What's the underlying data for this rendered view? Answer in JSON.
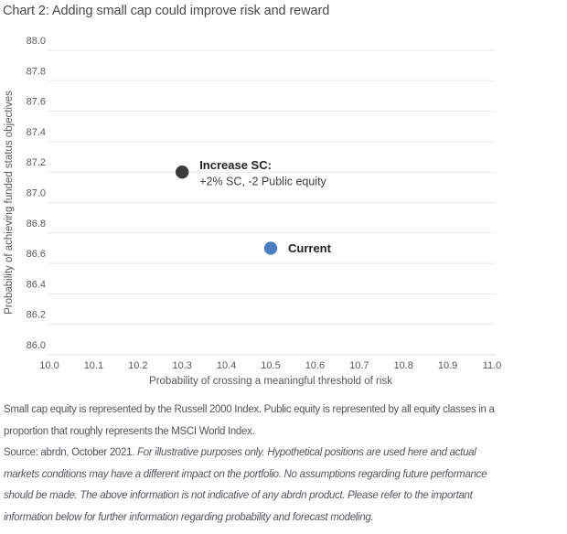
{
  "title": "Chart 2: Adding small cap could improve risk and reward",
  "chart_data": {
    "type": "scatter",
    "xlabel": "Probability of crossing a meaningful threshold of risk",
    "ylabel": "Probability of achieving funded status objectives",
    "xlim": [
      10.0,
      11.0
    ],
    "ylim": [
      86.0,
      88.0
    ],
    "x_ticks": [
      10.0,
      10.1,
      10.2,
      10.3,
      10.4,
      10.5,
      10.6,
      10.7,
      10.8,
      10.9,
      11.0
    ],
    "y_ticks": [
      86.0,
      86.2,
      86.4,
      86.6,
      86.8,
      87.0,
      87.2,
      87.4,
      87.6,
      87.8,
      88.0
    ],
    "grid": "horizontal-only",
    "legend": "none",
    "colors": {
      "grid": "#eaeaea",
      "axis_line": "#dcdcdc",
      "tick": "#595959",
      "axis_title": "#595959",
      "label_bold": "#232323",
      "label_regular": "#3f3f3f"
    },
    "series": [
      {
        "name": "Increase SC",
        "x": 10.3,
        "y": 87.2,
        "color": "#3b3b3b",
        "label_lines": [
          "Increase SC:",
          "+2% SC, -2 Public equity"
        ]
      },
      {
        "name": "Current",
        "x": 10.5,
        "y": 86.7,
        "color": "#4a7ec0",
        "label_lines": [
          "Current"
        ]
      }
    ]
  },
  "footnotes": {
    "lines": [
      {
        "segments": [
          {
            "text": "Small cap equity is represented by the Russell 2000 Index. Public equity is represented by all equity classes in a",
            "italic": false
          }
        ]
      },
      {
        "segments": [
          {
            "text": "proportion that roughly represents the MSCI World Index.",
            "italic": false
          }
        ]
      },
      {
        "segments": [
          {
            "text": "Source: abrdn, October 2021. ",
            "italic": false
          },
          {
            "text": "For illustrative purposes only. Hypothetical positions are used here and actual",
            "italic": true
          }
        ]
      },
      {
        "segments": [
          {
            "text": "markets conditions may have a different impact on the portfolio. No assumptions regarding future performance",
            "italic": true
          }
        ]
      },
      {
        "segments": [
          {
            "text": "should be made. The above information is not indicative of any abrdn product. Please refer to the important",
            "italic": true
          }
        ]
      },
      {
        "segments": [
          {
            "text": "information below for further information regarding probability and forecast modeling.",
            "italic": true
          }
        ]
      }
    ]
  }
}
